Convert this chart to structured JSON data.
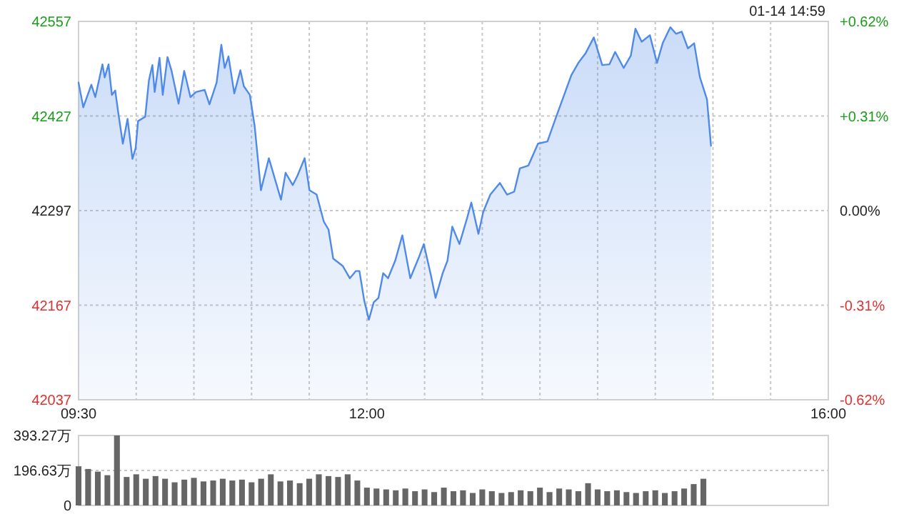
{
  "chart_data": [
    {
      "type": "area",
      "xlim": [
        9.5,
        16
      ],
      "ylim": [
        42037,
        42557
      ],
      "yticks": [
        42037,
        42167,
        42297,
        42427,
        42557
      ],
      "y2lim": [
        -0.62,
        0.62
      ],
      "y2ticks": [
        {
          "value": -0.62,
          "label": "-0.62%"
        },
        {
          "value": -0.31,
          "label": "-0.31%"
        },
        {
          "value": 0,
          "label": "0.00%"
        },
        {
          "value": 0.31,
          "label": "+0.31%"
        },
        {
          "value": 0.62,
          "label": "+0.62%"
        }
      ],
      "xticks": [
        {
          "value": 9.5,
          "label": "09:30"
        },
        {
          "value": 10,
          "label": null
        },
        {
          "value": 10.5,
          "label": null
        },
        {
          "value": 11,
          "label": null
        },
        {
          "value": 11.5,
          "label": null
        },
        {
          "value": 12,
          "label": "12:00"
        },
        {
          "value": 12.5,
          "label": null
        },
        {
          "value": 13,
          "label": null
        },
        {
          "value": 13.5,
          "label": null
        },
        {
          "value": 14,
          "label": null
        },
        {
          "value": 14.5,
          "label": null
        },
        {
          "value": 15,
          "label": null
        },
        {
          "value": 15.5,
          "label": null
        },
        {
          "value": 16,
          "label": "16:00"
        }
      ],
      "grid": true,
      "annotations": [
        "01-14 14:59"
      ],
      "x": [
        9.5,
        9.541,
        9.611,
        9.645,
        9.707,
        9.727,
        9.76,
        9.789,
        9.818,
        9.843,
        9.884,
        9.925,
        9.967,
        9.995,
        10.016,
        10.078,
        10.11,
        10.14,
        10.16,
        10.202,
        10.23,
        10.271,
        10.305,
        10.367,
        10.416,
        10.47,
        10.519,
        10.593,
        10.635,
        10.697,
        10.738,
        10.767,
        10.8,
        10.85,
        10.903,
        10.933,
        10.985,
        11.027,
        11.081,
        11.15,
        11.205,
        11.255,
        11.295,
        11.357,
        11.398,
        11.46,
        11.502,
        11.564,
        11.626,
        11.667,
        11.708,
        11.79,
        11.852,
        11.905,
        11.935,
        11.976,
        12.017,
        12.059,
        12.1,
        12.141,
        12.183,
        12.245,
        12.307,
        12.376,
        12.451,
        12.493,
        12.555,
        12.595,
        12.657,
        12.698,
        12.74,
        12.802,
        12.871,
        12.905,
        12.967,
        13.008,
        13.07,
        13.153,
        13.215,
        13.277,
        13.326,
        13.4,
        13.483,
        13.565,
        13.648,
        13.71,
        13.772,
        13.833,
        13.895,
        13.967,
        14.04,
        14.102,
        14.152,
        14.226,
        14.288,
        14.328,
        14.382,
        14.453,
        14.515,
        14.564,
        14.63,
        14.68,
        14.729,
        14.783,
        14.837,
        14.887,
        14.948,
        14.983
      ],
      "series": [
        {
          "color": "#4f8ae8",
          "values": [
            42473,
            42439,
            42470,
            42453,
            42498,
            42480,
            42498,
            42456,
            42462,
            42433,
            42389,
            42423,
            42368,
            42383,
            42420,
            42426,
            42476,
            42497,
            42460,
            42507,
            42456,
            42508,
            42490,
            42444,
            42489,
            42453,
            42460,
            42463,
            42443,
            42473,
            42525,
            42493,
            42509,
            42458,
            42490,
            42468,
            42456,
            42413,
            42325,
            42369,
            42339,
            42312,
            42349,
            42332,
            42345,
            42369,
            42325,
            42319,
            42282,
            42271,
            42231,
            42221,
            42204,
            42214,
            42214,
            42174,
            42147,
            42171,
            42177,
            42211,
            42204,
            42228,
            42263,
            42204,
            42233,
            42251,
            42208,
            42177,
            42211,
            42228,
            42275,
            42251,
            42288,
            42308,
            42265,
            42295,
            42319,
            42335,
            42319,
            42323,
            42355,
            42359,
            42389,
            42392,
            42429,
            42456,
            42483,
            42500,
            42513,
            42535,
            42497,
            42498,
            42515,
            42493,
            42510,
            42547,
            42529,
            42538,
            42500,
            42527,
            42549,
            42540,
            42543,
            42520,
            42527,
            42480,
            42450,
            42386
          ]
        }
      ]
    },
    {
      "type": "bar",
      "xlim": [
        9.5,
        16
      ],
      "ylim": [
        0,
        393.27
      ],
      "yticks": [
        0,
        {
          "value": 196.63,
          "label": "196.63万"
        },
        {
          "value": 393.27,
          "label": "393.27万"
        }
      ],
      "grid": "y",
      "tick_labels": "y",
      "x": [
        9.5,
        9.583,
        9.667,
        9.75,
        9.833,
        9.917,
        10,
        10.083,
        10.167,
        10.25,
        10.333,
        10.417,
        10.5,
        10.583,
        10.667,
        10.75,
        10.833,
        10.917,
        11,
        11.083,
        11.167,
        11.25,
        11.333,
        11.417,
        11.5,
        11.583,
        11.667,
        11.75,
        11.833,
        11.917,
        12,
        12.083,
        12.167,
        12.25,
        12.333,
        12.417,
        12.5,
        12.583,
        12.667,
        12.75,
        12.833,
        12.917,
        13,
        13.083,
        13.167,
        13.25,
        13.333,
        13.417,
        13.5,
        13.583,
        13.667,
        13.75,
        13.833,
        13.917,
        14,
        14.083,
        14.167,
        14.25,
        14.333,
        14.417,
        14.5,
        14.583,
        14.667,
        14.75,
        14.833,
        14.917
      ],
      "series": [
        {
          "color": "#666666",
          "values": [
            220,
            205,
            190,
            170,
            393.27,
            160,
            175,
            150,
            165,
            150,
            130,
            145,
            155,
            135,
            140,
            150,
            140,
            145,
            130,
            150,
            175,
            135,
            140,
            125,
            150,
            175,
            165,
            160,
            175,
            140,
            100,
            95,
            90,
            85,
            95,
            80,
            90,
            75,
            100,
            80,
            85,
            70,
            90,
            80,
            70,
            75,
            85,
            80,
            100,
            75,
            95,
            90,
            80,
            125,
            90,
            80,
            85,
            75,
            70,
            80,
            85,
            70,
            80,
            95,
            120,
            150
          ]
        }
      ]
    }
  ]
}
